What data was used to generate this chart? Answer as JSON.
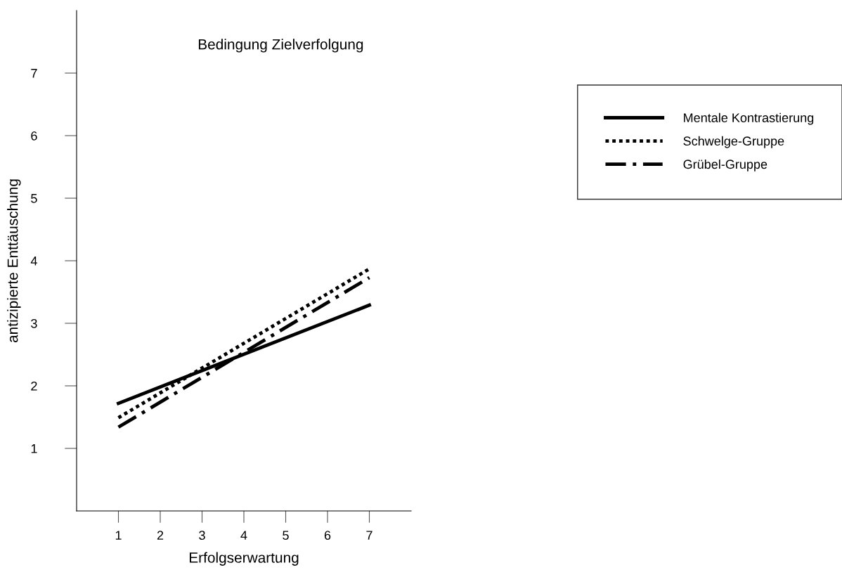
{
  "chart_data": {
    "type": "line",
    "title": "Bedingung Zielverfolgung",
    "xlabel": "Erfolgserwartung",
    "ylabel": "antizipierte Enttäuschung",
    "x": [
      1,
      7
    ],
    "series": [
      {
        "name": "Mentale Kontrastierung",
        "color": "#000000",
        "values": [
          1.72,
          3.29
        ],
        "line_style": "solid"
      },
      {
        "name": "Schwelge-Gruppe",
        "color": "#000000",
        "values": [
          1.49,
          3.87
        ],
        "line_style": "dotted"
      },
      {
        "name": "Grübel-Gruppe",
        "color": "#000000",
        "values": [
          1.34,
          3.73
        ],
        "line_style": "dashdot"
      }
    ],
    "xlim": [
      0,
      8
    ],
    "ylim": [
      0,
      8
    ],
    "xticks": [
      1,
      2,
      3,
      4,
      5,
      6,
      7
    ],
    "yticks": [
      1,
      2,
      3,
      4,
      5,
      6,
      7
    ],
    "grid": false,
    "legend": "top right",
    "marker": "none"
  }
}
